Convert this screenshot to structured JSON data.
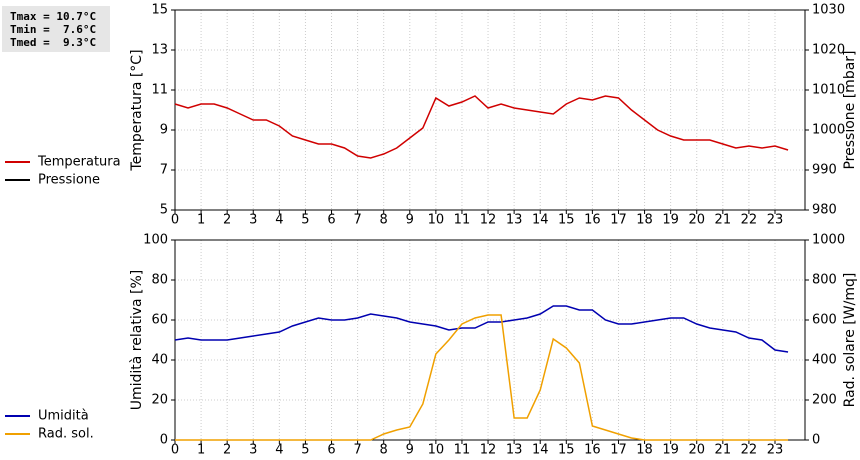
{
  "stats": [
    "Tmax = 10.7°C",
    "Tmin =  7.6°C",
    "Tmed =  9.3°C"
  ],
  "chart_data": [
    {
      "type": "line",
      "y_label": "Temperatura [°C]",
      "y2_label": "Pressione [mbar]",
      "x": [
        0,
        0.5,
        1,
        1.5,
        2,
        2.5,
        3,
        3.5,
        4,
        4.5,
        5,
        5.5,
        6,
        6.5,
        7,
        7.5,
        8,
        8.5,
        9,
        9.5,
        10,
        10.5,
        11,
        11.5,
        12,
        12.5,
        13,
        13.5,
        14,
        14.5,
        15,
        15.5,
        16,
        16.5,
        17,
        17.5,
        18,
        18.5,
        19,
        19.5,
        20,
        20.5,
        21,
        21.5,
        22,
        22.5,
        23,
        23.5
      ],
      "xlim": [
        0,
        24.15
      ],
      "xticks": [
        0,
        1,
        2,
        3,
        4,
        5,
        6,
        7,
        8,
        9,
        10,
        11,
        12,
        13,
        14,
        15,
        16,
        17,
        18,
        19,
        20,
        21,
        22,
        23
      ],
      "ylim": [
        5,
        15
      ],
      "yticks": [
        5,
        7,
        9,
        11,
        13,
        15
      ],
      "y2lim": [
        980,
        1030
      ],
      "y2ticks": [
        980,
        990,
        1000,
        1010,
        1020,
        1030
      ],
      "grid": true,
      "series": [
        {
          "name": "Temperatura",
          "color": "#d00000",
          "values": [
            10.3,
            10.1,
            10.3,
            10.3,
            10.1,
            9.8,
            9.5,
            9.5,
            9.2,
            8.7,
            8.5,
            8.3,
            8.3,
            8.1,
            7.7,
            7.6,
            7.8,
            8.1,
            8.6,
            9.1,
            10.6,
            10.2,
            10.4,
            10.7,
            10.1,
            10.3,
            10.1,
            10.0,
            9.9,
            9.8,
            10.3,
            10.6,
            10.5,
            10.7,
            10.6,
            10.0,
            9.5,
            9.0,
            8.7,
            8.5,
            8.5,
            8.5,
            8.3,
            8.1,
            8.2,
            8.1,
            8.2,
            8.0
          ]
        },
        {
          "name": "Pressione",
          "color": "#000000",
          "axis": "y2",
          "values": [
            null,
            null,
            null,
            null,
            null,
            null,
            null,
            null,
            null,
            null,
            null,
            null,
            null,
            null,
            null,
            null,
            null,
            null,
            null,
            null,
            null,
            null,
            null,
            null,
            null,
            null,
            null,
            null,
            null,
            null,
            null,
            null,
            null,
            null,
            null,
            null,
            null,
            null,
            null,
            null,
            null,
            null,
            null,
            null,
            null,
            null,
            null,
            null
          ]
        }
      ]
    },
    {
      "type": "line",
      "y_label": "Umidità relativa [%]",
      "y2_label": "Rad. solare [W/mq]",
      "x": [
        0,
        0.5,
        1,
        1.5,
        2,
        2.5,
        3,
        3.5,
        4,
        4.5,
        5,
        5.5,
        6,
        6.5,
        7,
        7.5,
        8,
        8.5,
        9,
        9.5,
        10,
        10.5,
        11,
        11.5,
        12,
        12.5,
        13,
        13.5,
        14,
        14.5,
        15,
        15.5,
        16,
        16.5,
        17,
        17.5,
        18,
        18.5,
        19,
        19.5,
        20,
        20.5,
        21,
        21.5,
        22,
        22.5,
        23,
        23.5
      ],
      "xlim": [
        0,
        24.15
      ],
      "xticks": [
        0,
        1,
        2,
        3,
        4,
        5,
        6,
        7,
        8,
        9,
        10,
        11,
        12,
        13,
        14,
        15,
        16,
        17,
        18,
        19,
        20,
        21,
        22,
        23
      ],
      "ylim": [
        0,
        100
      ],
      "yticks": [
        0,
        20,
        40,
        60,
        80,
        100
      ],
      "y2lim": [
        0,
        1000
      ],
      "y2ticks": [
        0,
        200,
        400,
        600,
        800,
        1000
      ],
      "grid": true,
      "series": [
        {
          "name": "Umidità",
          "color": "#0000b0",
          "values": [
            50,
            51,
            50,
            50,
            50,
            51,
            52,
            53,
            54,
            57,
            59,
            61,
            60,
            60,
            61,
            63,
            62,
            61,
            59,
            58,
            57,
            55,
            56,
            56,
            59,
            59,
            60,
            61,
            63,
            67,
            67,
            65,
            65,
            60,
            58,
            58,
            59,
            60,
            61,
            61,
            58,
            56,
            55,
            54,
            51,
            50,
            45,
            44
          ]
        },
        {
          "name": "Rad. sol.",
          "color": "#f0a000",
          "axis": "y2",
          "values": [
            0,
            0,
            0,
            0,
            0,
            0,
            0,
            0,
            0,
            0,
            0,
            0,
            0,
            0,
            0,
            0,
            30,
            50,
            65,
            180,
            430,
            500,
            580,
            610,
            625,
            625,
            110,
            110,
            250,
            505,
            460,
            385,
            70,
            50,
            30,
            10,
            0,
            0,
            0,
            0,
            0,
            0,
            0,
            0,
            0,
            0,
            0,
            0
          ]
        }
      ]
    }
  ]
}
